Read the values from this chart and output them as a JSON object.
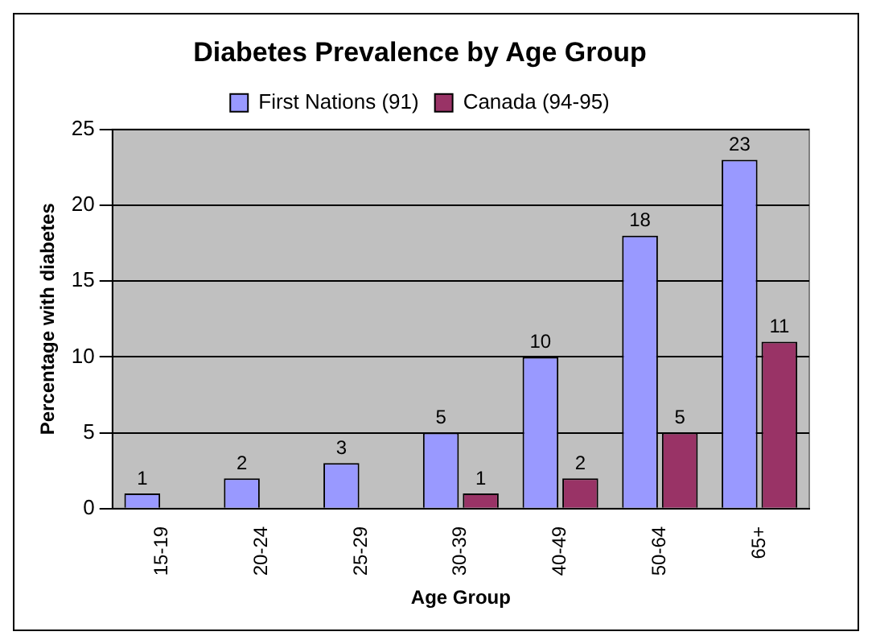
{
  "chart_data": {
    "type": "bar",
    "title": "Diabetes Prevalence by Age Group",
    "xlabel": "Age Group",
    "ylabel": "Percentage with diabetes",
    "categories": [
      "15-19",
      "20-24",
      "25-29",
      "30-39",
      "40-49",
      "50-64",
      "65+"
    ],
    "series": [
      {
        "name": "First Nations (91)",
        "color": "#9999ff",
        "values": [
          1,
          2,
          3,
          5,
          10,
          18,
          23
        ]
      },
      {
        "name": "Canada (94-95)",
        "color": "#993366",
        "values": [
          null,
          null,
          null,
          1,
          2,
          5,
          11
        ]
      }
    ],
    "ylim": [
      0,
      25
    ],
    "yticks": [
      0,
      5,
      10,
      15,
      20,
      25
    ],
    "grid": "y",
    "legend": "top",
    "data_labels": true
  }
}
